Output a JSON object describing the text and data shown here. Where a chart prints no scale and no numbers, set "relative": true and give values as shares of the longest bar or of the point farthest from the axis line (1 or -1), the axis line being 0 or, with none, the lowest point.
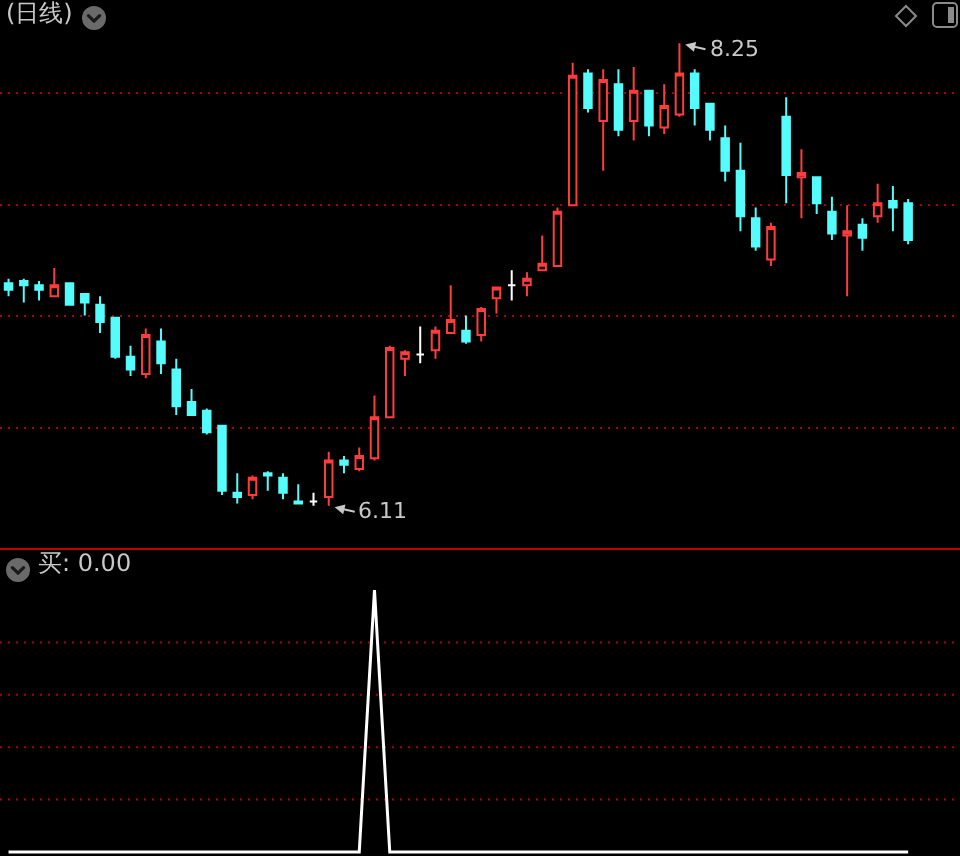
{
  "chart_data": [
    {
      "type": "candlestick",
      "title": "(日线)",
      "categories": [
        null,
        null,
        null,
        null,
        null,
        null,
        null,
        null,
        null,
        null,
        null,
        null,
        null,
        null,
        null,
        null,
        null,
        null,
        null,
        null,
        null,
        null,
        null,
        null,
        null,
        null,
        null,
        null,
        null,
        null,
        null,
        null,
        null,
        null,
        null,
        null,
        null,
        null,
        null,
        null,
        null,
        null,
        null,
        null,
        null,
        null,
        null,
        null,
        null,
        null,
        null,
        null,
        null,
        null,
        null,
        null,
        null,
        null,
        null,
        null
      ],
      "ohlc": [
        [
          7.14,
          7.16,
          7.08,
          7.11
        ],
        [
          7.15,
          7.16,
          7.05,
          7.13
        ],
        [
          7.13,
          7.15,
          7.06,
          7.11
        ],
        [
          7.08,
          7.21,
          7.08,
          7.13
        ],
        [
          7.14,
          7.14,
          7.04,
          7.04
        ],
        [
          7.09,
          7.09,
          6.99,
          7.05
        ],
        [
          7.04,
          7.08,
          6.91,
          6.96
        ],
        [
          6.98,
          6.98,
          6.79,
          6.8
        ],
        [
          6.8,
          6.85,
          6.71,
          6.74
        ],
        [
          6.72,
          6.93,
          6.7,
          6.9
        ],
        [
          6.87,
          6.93,
          6.72,
          6.77
        ],
        [
          6.74,
          6.79,
          6.53,
          6.57
        ],
        [
          6.59,
          6.65,
          6.53,
          6.53
        ],
        [
          6.55,
          6.56,
          6.44,
          6.45
        ],
        [
          6.48,
          6.48,
          6.16,
          6.18
        ],
        [
          6.17,
          6.26,
          6.12,
          6.15
        ],
        [
          6.16,
          6.25,
          6.14,
          6.24
        ],
        [
          6.26,
          6.27,
          6.18,
          6.25
        ],
        [
          6.24,
          6.26,
          6.14,
          6.17
        ],
        [
          6.13,
          6.21,
          6.12,
          6.12
        ],
        [
          6.13,
          6.17,
          6.11,
          6.13
        ],
        [
          6.15,
          6.36,
          6.11,
          6.32
        ],
        [
          6.32,
          6.34,
          6.26,
          6.3
        ],
        [
          6.28,
          6.38,
          6.27,
          6.34
        ],
        [
          6.33,
          6.62,
          6.32,
          6.52
        ],
        [
          6.52,
          6.85,
          6.52,
          6.84
        ],
        [
          6.79,
          6.83,
          6.71,
          6.82
        ],
        [
          6.81,
          6.94,
          6.77,
          6.81
        ],
        [
          6.83,
          6.94,
          6.79,
          6.92
        ],
        [
          6.91,
          7.13,
          6.91,
          6.97
        ],
        [
          6.92,
          6.99,
          6.86,
          6.87
        ],
        [
          6.9,
          7.03,
          6.87,
          7.02
        ],
        [
          7.07,
          7.12,
          7.0,
          7.12
        ],
        [
          7.13,
          7.2,
          7.06,
          7.13
        ],
        [
          7.13,
          7.19,
          7.08,
          7.16
        ],
        [
          7.2,
          7.36,
          7.2,
          7.23
        ],
        [
          7.22,
          7.49,
          7.22,
          7.47
        ],
        [
          7.5,
          8.16,
          7.5,
          8.1
        ],
        [
          8.11,
          8.13,
          7.93,
          7.95
        ],
        [
          7.89,
          8.13,
          7.66,
          8.08
        ],
        [
          8.06,
          8.13,
          7.82,
          7.85
        ],
        [
          7.89,
          8.14,
          7.8,
          8.03
        ],
        [
          8.03,
          8.03,
          7.82,
          7.87
        ],
        [
          7.86,
          8.06,
          7.83,
          7.96
        ],
        [
          7.92,
          8.25,
          7.91,
          8.11
        ],
        [
          8.11,
          8.13,
          7.87,
          7.95
        ],
        [
          7.97,
          7.97,
          7.8,
          7.85
        ],
        [
          7.81,
          7.87,
          7.61,
          7.66
        ],
        [
          7.66,
          7.79,
          7.38,
          7.45
        ],
        [
          7.44,
          7.49,
          7.29,
          7.31
        ],
        [
          7.25,
          7.42,
          7.22,
          7.4
        ],
        [
          7.91,
          8.0,
          7.51,
          7.64
        ],
        [
          7.63,
          7.76,
          7.44,
          7.65
        ],
        [
          7.63,
          7.63,
          7.46,
          7.51
        ],
        [
          7.47,
          7.54,
          7.34,
          7.37
        ],
        [
          7.36,
          7.5,
          7.08,
          7.38
        ],
        [
          7.41,
          7.44,
          7.29,
          7.35
        ],
        [
          7.45,
          7.6,
          7.42,
          7.51
        ],
        [
          7.52,
          7.59,
          7.38,
          7.49
        ],
        [
          7.51,
          7.53,
          7.32,
          7.34
        ]
      ],
      "colors": [
        "#54fcfc",
        "#54fcfc",
        "#54fcfc",
        "#ff3c3c",
        "#54fcfc",
        "#54fcfc",
        "#54fcfc",
        "#54fcfc",
        "#54fcfc",
        "#ff3c3c",
        "#54fcfc",
        "#54fcfc",
        "#54fcfc",
        "#54fcfc",
        "#54fcfc",
        "#54fcfc",
        "#ff3c3c",
        "#54fcfc",
        "#54fcfc",
        "#54fcfc",
        "#ffffff",
        "#ff3c3c",
        "#54fcfc",
        "#ff3c3c",
        "#ff3c3c",
        "#ff3c3c",
        "#ff3c3c",
        "#ffffff",
        "#ff3c3c",
        "#ff3c3c",
        "#54fcfc",
        "#ff3c3c",
        "#ff3c3c",
        "#ffffff",
        "#ff3c3c",
        "#ff3c3c",
        "#ff3c3c",
        "#ff3c3c",
        "#54fcfc",
        "#ff3c3c",
        "#54fcfc",
        "#ff3c3c",
        "#54fcfc",
        "#ff3c3c",
        "#ff3c3c",
        "#54fcfc",
        "#54fcfc",
        "#54fcfc",
        "#54fcfc",
        "#54fcfc",
        "#ff3c3c",
        "#54fcfc",
        "#ff3c3c",
        "#54fcfc",
        "#54fcfc",
        "#ff3c3c",
        "#54fcfc",
        "#ff3c3c",
        "#54fcfc",
        "#54fcfc"
      ],
      "annotations": [
        "8.25",
        "6.11"
      ],
      "yticks": [
        {
          "value": 8.02,
          "label": null
        },
        {
          "value": 7.5,
          "label": null
        },
        {
          "value": 6.99,
          "label": null
        },
        {
          "value": 6.47,
          "label": null
        }
      ],
      "grid": "y"
    },
    {
      "type": "line",
      "title": "买: 0.00",
      "categories": [
        null,
        null,
        null,
        null,
        null,
        null,
        null,
        null,
        null,
        null,
        null,
        null,
        null,
        null,
        null,
        null,
        null,
        null,
        null,
        null,
        null,
        null,
        null,
        null,
        null,
        null,
        null,
        null,
        null,
        null,
        null,
        null,
        null,
        null,
        null,
        null,
        null,
        null,
        null,
        null,
        null,
        null,
        null,
        null,
        null,
        null,
        null,
        null,
        null,
        null,
        null,
        null,
        null,
        null,
        null,
        null,
        null,
        null,
        null,
        null
      ],
      "values": [
        0,
        0,
        0,
        0,
        0,
        0,
        0,
        0,
        0,
        0,
        0,
        0,
        0,
        0,
        0,
        0,
        0,
        0,
        0,
        0,
        0,
        0,
        0,
        0,
        1,
        0,
        0,
        0,
        0,
        0,
        0,
        0,
        0,
        0,
        0,
        0,
        0,
        0,
        0,
        0,
        0,
        0,
        0,
        0,
        0,
        0,
        0,
        0,
        0,
        0,
        0,
        0,
        0,
        0,
        0,
        0,
        0,
        0,
        0,
        0
      ],
      "color": "#ffffff",
      "relative": true,
      "ref_lines": [
        {
          "axis": "y",
          "value": 0.8,
          "color": "#b40000",
          "line_style": "dotted"
        },
        {
          "axis": "y",
          "value": 0.6,
          "color": "#b40000",
          "line_style": "dotted"
        },
        {
          "axis": "y",
          "value": 0.4,
          "color": "#b40000",
          "line_style": "dotted"
        },
        {
          "axis": "y",
          "value": 0.2,
          "color": "#b40000",
          "line_style": "dotted"
        }
      ]
    }
  ]
}
